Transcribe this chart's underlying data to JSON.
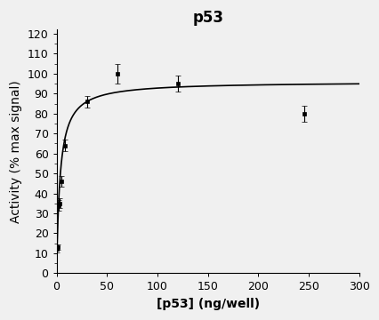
{
  "title": "p53",
  "xlabel": "[p53] (ng/well)",
  "ylabel": "Activity (% max signal)",
  "xlim": [
    0,
    300
  ],
  "ylim": [
    0,
    122
  ],
  "xticks": [
    0,
    50,
    100,
    150,
    200,
    250,
    300
  ],
  "yticks": [
    0,
    10,
    20,
    30,
    40,
    50,
    60,
    70,
    80,
    90,
    100,
    110,
    120
  ],
  "data_x": [
    0.5,
    1.0,
    2.0,
    3.0,
    5.0,
    8.0,
    30.0,
    60.0,
    120.0,
    245.0
  ],
  "data_y": [
    12.0,
    13.0,
    34.0,
    35.0,
    46.0,
    64.0,
    86.0,
    100.0,
    95.0,
    80.0
  ],
  "data_yerr": [
    1.5,
    1.5,
    2.5,
    2.5,
    2.5,
    3.0,
    3.0,
    5.0,
    4.0,
    4.0
  ],
  "curve_Vmax": 96.0,
  "curve_Km": 3.5,
  "curve_n": 1.0,
  "line_color": "#000000",
  "marker_color": "#000000",
  "background_color": "#f0f0f0",
  "title_fontsize": 12,
  "label_fontsize": 10,
  "tick_fontsize": 9
}
